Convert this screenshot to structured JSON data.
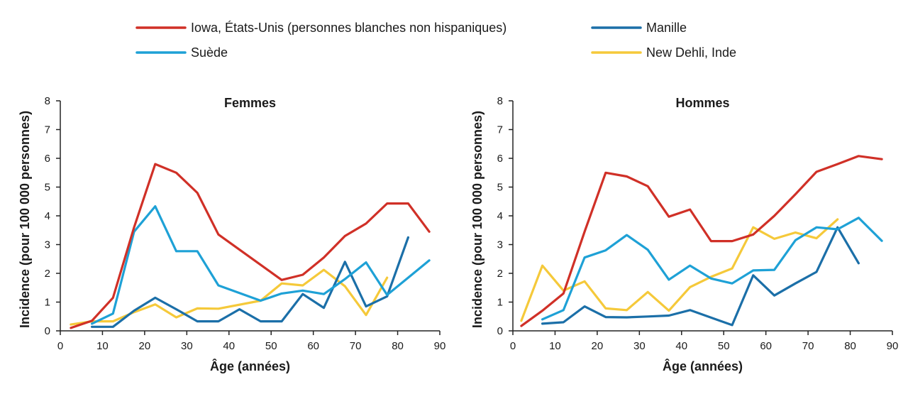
{
  "legend": [
    {
      "label": "Iowa, États-Unis (personnes blanches non hispaniques)",
      "color": "#d03027"
    },
    {
      "label": "Manille",
      "color": "#1b6fa8"
    },
    {
      "label": "Suède",
      "color": "#1ea1d6"
    },
    {
      "label": "New Dehli, Inde",
      "color": "#f5c93a"
    }
  ],
  "chart_data": [
    {
      "type": "line",
      "title": "Femmes",
      "xlabel": "Âge (années)",
      "ylabel": "Incidence (pour 100 000 personnes)",
      "xlim": [
        0,
        90
      ],
      "ylim": [
        0,
        8
      ],
      "xticks": [
        "0",
        "10",
        "20",
        "30",
        "40",
        "50",
        "60",
        "70",
        "80",
        "90"
      ],
      "yticks": [
        "0",
        "1",
        "2",
        "3",
        "4",
        "5",
        "6",
        "7",
        "8"
      ],
      "series": [
        {
          "name": "Iowa, États-Unis (personnes blanches non hispaniques)",
          "color": "#d03027",
          "x": [
            2.5,
            7.5,
            12.5,
            17.5,
            22.5,
            27.5,
            32.5,
            37.5,
            52.5,
            57.5,
            62.5,
            67.5,
            72.5,
            77.5,
            82.5,
            87.5
          ],
          "y": [
            0.1,
            0.35,
            1.15,
            3.6,
            5.8,
            5.5,
            4.8,
            3.35,
            1.77,
            1.95,
            2.55,
            3.3,
            3.73,
            4.43,
            4.43,
            3.45
          ]
        },
        {
          "name": "Suède",
          "color": "#1ea1d6",
          "x": [
            7.5,
            12.5,
            17.5,
            22.5,
            27.5,
            32.5,
            37.5,
            47.5,
            52.5,
            57.5,
            62.5,
            67.5,
            72.5,
            77.5,
            82.5,
            87.5
          ],
          "y": [
            0.25,
            0.6,
            3.45,
            4.33,
            2.77,
            2.77,
            1.58,
            1.05,
            1.3,
            1.4,
            1.28,
            1.8,
            2.38,
            1.25,
            1.85,
            2.45
          ]
        },
        {
          "name": "Manille",
          "color": "#1b6fa8",
          "x": [
            7.5,
            12.5,
            17.5,
            22.5,
            27.5,
            32.5,
            37.5,
            42.5,
            47.5,
            52.5,
            57.5,
            62.5,
            67.5,
            72.5,
            77.5,
            82.5
          ],
          "y": [
            0.14,
            0.14,
            0.7,
            1.15,
            0.75,
            0.33,
            0.33,
            0.75,
            0.33,
            0.33,
            1.28,
            0.8,
            2.4,
            0.85,
            1.2,
            3.25
          ]
        },
        {
          "name": "New Dehli, Inde",
          "color": "#f5c93a",
          "x": [
            2.5,
            7.5,
            12.5,
            17.5,
            22.5,
            27.5,
            32.5,
            37.5,
            47.5,
            52.5,
            57.5,
            62.5,
            67.5,
            72.5,
            77.5
          ],
          "y": [
            0.22,
            0.33,
            0.33,
            0.65,
            0.92,
            0.47,
            0.78,
            0.77,
            1.05,
            1.65,
            1.58,
            2.12,
            1.55,
            0.55,
            1.85
          ]
        }
      ]
    },
    {
      "type": "line",
      "title": "Hommes",
      "xlabel": "Âge (années)",
      "ylabel": "Incidence (pour 100 000 personnes)",
      "xlim": [
        0,
        90
      ],
      "ylim": [
        0,
        8
      ],
      "xticks": [
        "0",
        "10",
        "20",
        "30",
        "40",
        "50",
        "60",
        "70",
        "80",
        "90"
      ],
      "yticks": [
        "0",
        "1",
        "2",
        "3",
        "4",
        "5",
        "6",
        "7",
        "8"
      ],
      "series": [
        {
          "name": "Iowa, États-Unis (personnes blanches non hispaniques)",
          "color": "#d03027",
          "x": [
            2,
            7,
            12,
            17,
            22,
            27,
            32,
            37,
            42,
            47,
            52,
            57,
            62,
            67,
            72,
            77,
            82,
            87.5
          ],
          "y": [
            0.17,
            0.7,
            1.3,
            3.45,
            5.5,
            5.37,
            5.03,
            3.97,
            4.22,
            3.12,
            3.12,
            3.35,
            4.0,
            4.75,
            5.53,
            5.8,
            6.08,
            5.97
          ]
        },
        {
          "name": "Suède",
          "color": "#1ea1d6",
          "x": [
            7,
            12,
            17,
            22,
            27,
            32,
            37,
            42,
            47,
            52,
            57,
            62,
            67,
            72,
            77,
            82,
            87.5
          ],
          "y": [
            0.4,
            0.72,
            2.55,
            2.8,
            3.33,
            2.82,
            1.78,
            2.27,
            1.82,
            1.65,
            2.1,
            2.12,
            3.15,
            3.6,
            3.53,
            3.93,
            3.13
          ]
        },
        {
          "name": "Manille",
          "color": "#1b6fa8",
          "x": [
            7,
            12,
            17,
            22,
            27,
            32,
            37,
            42,
            52,
            57,
            62,
            67,
            72,
            77,
            82
          ],
          "y": [
            0.25,
            0.3,
            0.85,
            0.48,
            0.47,
            0.5,
            0.53,
            0.72,
            0.2,
            1.93,
            1.23,
            1.65,
            2.05,
            3.6,
            2.35
          ]
        },
        {
          "name": "New Dehli, Inde",
          "color": "#f5c93a",
          "x": [
            2,
            7,
            12,
            17,
            22,
            27,
            32,
            37,
            42,
            47,
            52,
            57,
            62,
            67,
            72,
            77
          ],
          "y": [
            0.35,
            2.27,
            1.4,
            1.72,
            0.78,
            0.72,
            1.35,
            0.7,
            1.52,
            1.88,
            2.17,
            3.6,
            3.2,
            3.42,
            3.22,
            3.88
          ]
        }
      ]
    }
  ]
}
